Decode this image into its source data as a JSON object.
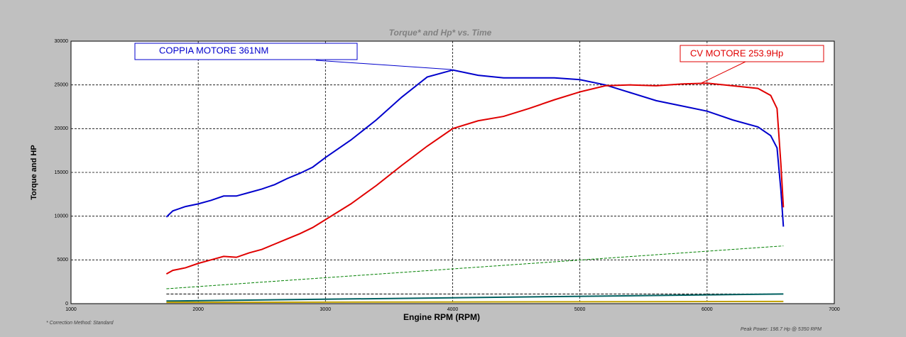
{
  "chart_data": {
    "type": "line",
    "title": "Torque* and Hp* vs. Time",
    "x_label": "Engine RPM (RPM)",
    "y_label": "Torque and HP",
    "footnote_left": "* Correction Method: Standard",
    "footnote_right": "Peak Power: 198.7 Hp @ 5350 RPM",
    "annotations": [
      "COPPIA MOTORE 361NM",
      "CV MOTORE 253.9Hp"
    ],
    "x": [
      1750,
      1800,
      1900,
      2000,
      2100,
      2200,
      2300,
      2400,
      2500,
      2600,
      2700,
      2800,
      2900,
      3000,
      3200,
      3400,
      3600,
      3800,
      4000,
      4200,
      4400,
      4600,
      4800,
      5000,
      5200,
      5400,
      5600,
      5800,
      6000,
      6200,
      6400,
      6500,
      6550,
      6580,
      6600
    ],
    "series": [
      {
        "color": "#0000cc",
        "values": [
          9900,
          10600,
          11100,
          11400,
          11800,
          12300,
          12300,
          12700,
          13100,
          13600,
          14300,
          14900,
          15600,
          16700,
          18700,
          21000,
          23600,
          25900,
          26700,
          26100,
          25800,
          25800,
          25800,
          25600,
          25000,
          24100,
          23200,
          22600,
          22000,
          21000,
          20200,
          19200,
          17800,
          13000,
          8800
        ]
      },
      {
        "color": "#e00000",
        "values": [
          3400,
          3800,
          4100,
          4600,
          5000,
          5400,
          5300,
          5800,
          6200,
          6800,
          7400,
          8000,
          8700,
          9600,
          11400,
          13500,
          15800,
          18000,
          20000,
          20900,
          21400,
          22300,
          23300,
          24200,
          24900,
          25000,
          24900,
          25100,
          25200,
          24900,
          24600,
          23800,
          22300,
          16000,
          11000
        ]
      },
      {
        "color": "#008000",
        "dashed": true,
        "x": [
          1750,
          6600
        ],
        "values": [
          1700,
          6600
        ]
      },
      {
        "color": "#000000",
        "dashed": true,
        "x": [
          1750,
          6600
        ],
        "values": [
          1100,
          1100
        ]
      },
      {
        "color": "#006060",
        "x": [
          1750,
          6600
        ],
        "values": [
          300,
          1100
        ]
      },
      {
        "color": "#c0a000",
        "x": [
          1750,
          6600
        ],
        "values": [
          150,
          250
        ]
      }
    ],
    "xlim": [
      1000,
      7000
    ],
    "xticks": [
      1000,
      2000,
      3000,
      4000,
      5000,
      6000,
      7000
    ],
    "ylim": [
      0,
      30000
    ],
    "yticks": [
      0,
      5000,
      10000,
      15000,
      20000,
      25000,
      30000
    ],
    "grid": true
  }
}
